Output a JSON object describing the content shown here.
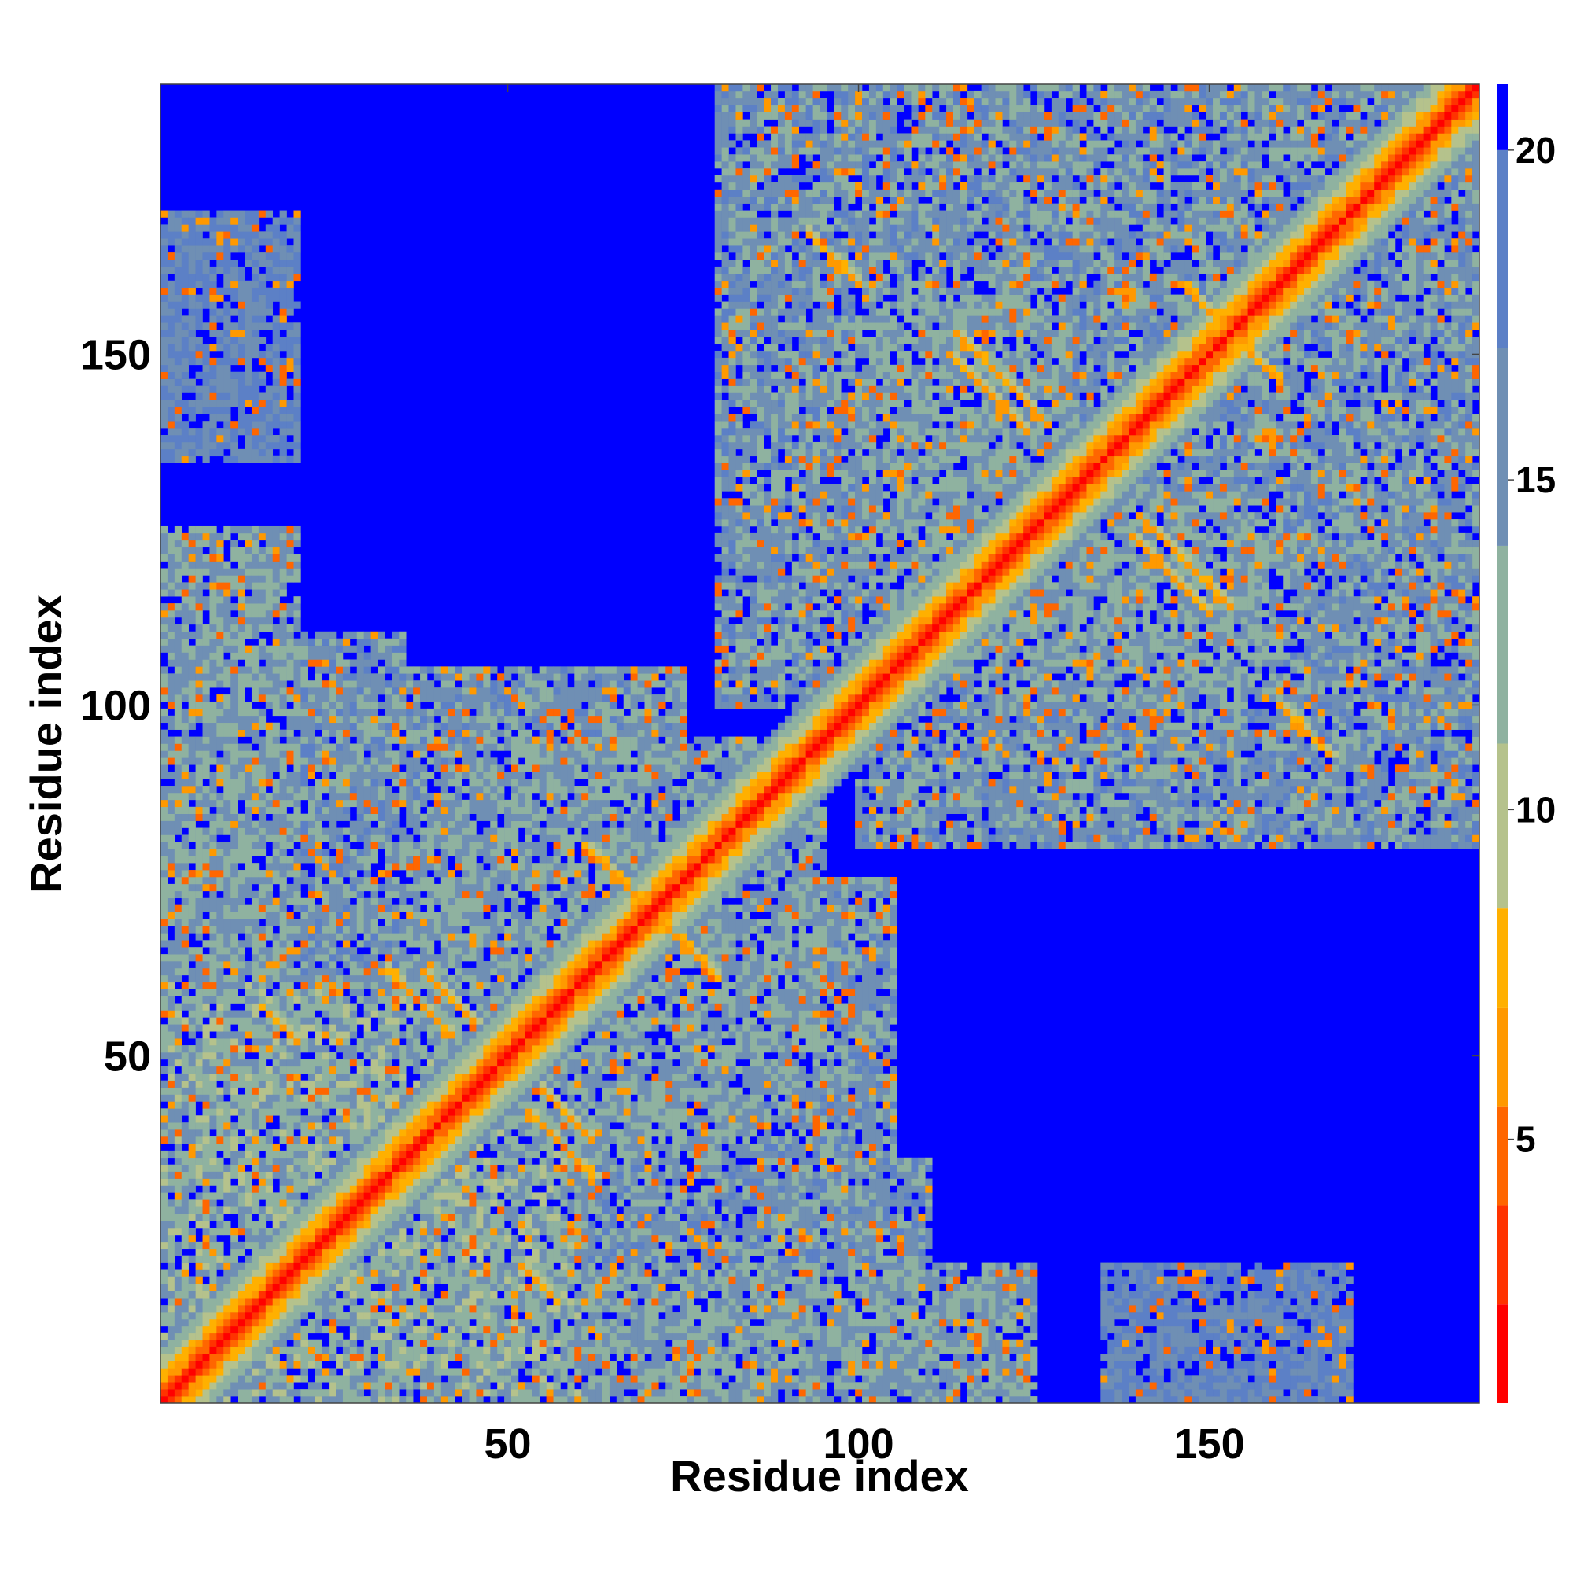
{
  "chart_data": {
    "type": "heatmap",
    "title": "",
    "xlabel": "Residue index",
    "ylabel": "Residue index",
    "n_residues": 188,
    "xlim": [
      1,
      188
    ],
    "ylim": [
      1,
      188
    ],
    "x_ticks": [
      "50",
      "100",
      "150"
    ],
    "y_ticks": [
      "50",
      "100",
      "150"
    ],
    "colorbar": {
      "range": [
        1,
        21
      ],
      "ticks": [
        "5",
        "10",
        "15",
        "20"
      ],
      "colors": [
        "#ff0000",
        "#ff3300",
        "#ff6600",
        "#ff9900",
        "#ffb000",
        "#b5c28c",
        "#8fb2a0",
        "#6f8fb4",
        "#5c80c6",
        "#0000ff"
      ],
      "boundaries": [
        1,
        2.5,
        4,
        5.5,
        7,
        8.5,
        11,
        14,
        17,
        20,
        21
      ]
    },
    "background_color": "#0000ff",
    "diagonal_color": "#ff0000",
    "description_values": {
      "diagonal_distance": 1,
      "near_diagonal_band_width_residues": 8,
      "helix_antidiagonal_contacts": [
        {
          "i": 15,
          "j": 57,
          "length": 6
        },
        {
          "i": 38,
          "j": 62,
          "length": 8
        },
        {
          "i": 53,
          "j": 42,
          "length": 10
        },
        {
          "i": 61,
          "j": 80,
          "length": 10
        },
        {
          "i": 113,
          "j": 150,
          "length": 12
        },
        {
          "i": 140,
          "j": 127,
          "length": 14
        },
        {
          "i": 146,
          "j": 160,
          "length": 14
        },
        {
          "i": 160,
          "j": 100,
          "length": 8
        }
      ],
      "contact_blocks": [
        {
          "x": [
            1,
            40
          ],
          "y": [
            1,
            60
          ],
          "mean": 13
        },
        {
          "x": [
            1,
            20
          ],
          "y": [
            60,
            125
          ],
          "mean": 14
        },
        {
          "x": [
            25,
            110
          ],
          "y": [
            1,
            35
          ],
          "mean": 15
        },
        {
          "x": [
            45,
            85
          ],
          "y": [
            35,
            95
          ],
          "mean": 14
        },
        {
          "x": [
            30,
            75
          ],
          "y": [
            55,
            105
          ],
          "mean": 15
        },
        {
          "x": [
            80,
            135
          ],
          "y": [
            100,
            188
          ],
          "mean": 15
        },
        {
          "x": [
            130,
            188
          ],
          "y": [
            100,
            188
          ],
          "mean": 15
        },
        {
          "x": [
            125,
            175
          ],
          "y": [
            85,
            130
          ],
          "mean": 15
        },
        {
          "x": [
            100,
            130
          ],
          "y": [
            120,
            160
          ],
          "mean": 14
        },
        {
          "x": [
            1,
            20
          ],
          "y": [
            140,
            170
          ],
          "mean": 17
        },
        {
          "x": [
            135,
            165
          ],
          "y": [
            1,
            20
          ],
          "mean": 17
        },
        {
          "x": [
            55,
            100
          ],
          "y": [
            40,
            75
          ],
          "mean": 16
        }
      ]
    }
  }
}
